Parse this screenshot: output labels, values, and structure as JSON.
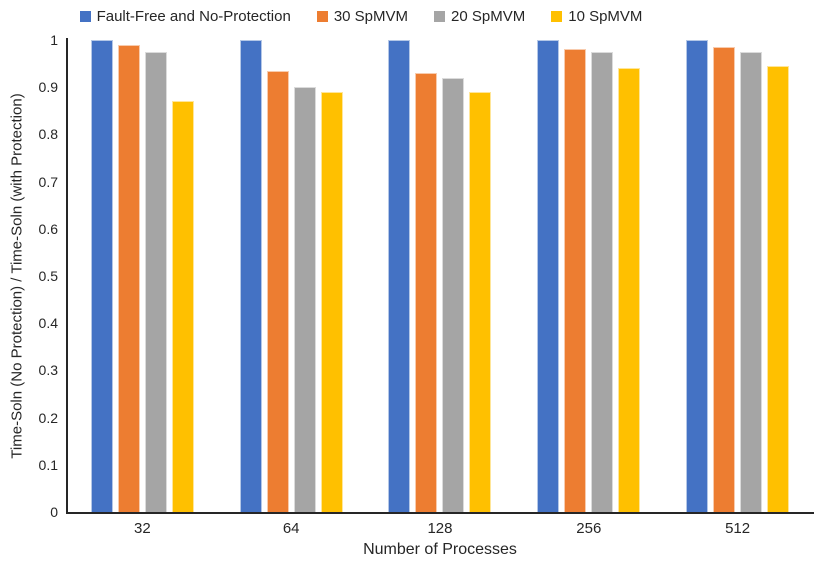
{
  "chart_data": {
    "type": "bar",
    "title": "",
    "xlabel": "Number of Processes",
    "ylabel": "Time-Soln (No Protection) / Time-Soln (with Protection)",
    "categories": [
      "32",
      "64",
      "128",
      "256",
      "512"
    ],
    "series": [
      {
        "name": "Fault-Free and No-Protection",
        "color": "#4472C4",
        "border_color": "#B4C7E7",
        "values": [
          1.0,
          1.0,
          1.0,
          1.0,
          1.0
        ]
      },
      {
        "name": "30 SpMVM",
        "color": "#ED7D31",
        "border_color": "#F8CBAD",
        "values": [
          0.99,
          0.935,
          0.93,
          0.98,
          0.985
        ]
      },
      {
        "name": "20 SpMVM",
        "color": "#A5A5A5",
        "border_color": "#DBDBDB",
        "values": [
          0.975,
          0.9,
          0.92,
          0.975,
          0.975
        ]
      },
      {
        "name": "10 SpMVM",
        "color": "#FFC000",
        "border_color": "#FFE699",
        "values": [
          0.87,
          0.89,
          0.89,
          0.94,
          0.945
        ]
      }
    ],
    "ylim": [
      0,
      1
    ],
    "yticks": [
      "0",
      "0.1",
      "0.2",
      "0.3",
      "0.4",
      "0.5",
      "0.6",
      "0.7",
      "0.8",
      "0.9",
      "1"
    ],
    "grid": false,
    "legend_position": "top",
    "axis_color": "#262626",
    "background_color": "#FFFFFF"
  }
}
